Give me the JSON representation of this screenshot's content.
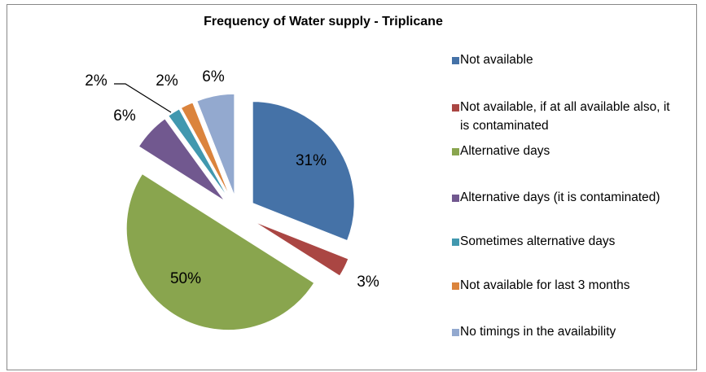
{
  "chart_data": {
    "type": "pie",
    "title": "Frequency of Water supply - Triplicane",
    "categories": [
      "Not available",
      "Not available, if at all available also, it is contaminated",
      "Alternative days",
      "Alternative days (it is contaminated)",
      "Sometimes alternative days",
      "Not available for last 3 months",
      "No timings in the availability"
    ],
    "values": [
      31,
      3,
      50,
      6,
      2,
      2,
      6
    ],
    "value_labels": [
      "31%",
      "3%",
      "50%",
      "6%",
      "2%",
      "2%",
      "6%"
    ],
    "colors": [
      "#4572a7",
      "#aa4643",
      "#89a54e",
      "#71588f",
      "#4198af",
      "#db843d",
      "#93a9cf"
    ],
    "legend": "right"
  }
}
